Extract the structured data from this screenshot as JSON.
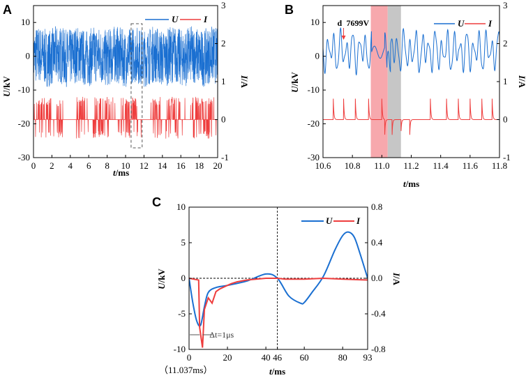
{
  "colors": {
    "u": "#1a6fd1",
    "i": "#ee3d3d",
    "shade_pink": "#f7a8ad",
    "shade_gray": "#c6c6c6",
    "axis": "#000000"
  },
  "chart_data": [
    {
      "panel": "A",
      "type": "line",
      "xlabel_var": "t",
      "xlabel_unit": "/ms",
      "ylabel_var": "U",
      "ylabel_unit": "/kV",
      "y2label_var": "I",
      "y2label_unit": "/A",
      "xlim": [
        0,
        20
      ],
      "ylim": [
        -30,
        15
      ],
      "y2lim": [
        -1,
        3
      ],
      "xticks": [
        "0",
        "2",
        "4",
        "6",
        "8",
        "10",
        "12",
        "14",
        "16",
        "18",
        "20"
      ],
      "yticks": [
        "-30",
        "-20",
        "-10",
        "0",
        "10"
      ],
      "y2ticks": [
        "-1",
        "0",
        "1",
        "2",
        "3"
      ],
      "legend": [
        "U",
        "I"
      ],
      "series": [
        {
          "name": "U",
          "axis": "left",
          "description": "dense oscillation between about -8 and 9 kV"
        },
        {
          "name": "I",
          "axis": "right",
          "description": "baseline 0 A with pulses up to about 0.6 A and down to about -0.5 A"
        }
      ],
      "annotations": [
        {
          "type": "dashed-box",
          "x_range": [
            10.6,
            11.8
          ]
        }
      ]
    },
    {
      "panel": "B",
      "type": "line",
      "xlabel_var": "t",
      "xlabel_unit": "/ms",
      "ylabel_var": "U",
      "ylabel_unit": "/kV",
      "y2label_var": "I",
      "y2label_unit": "/A",
      "xlim": [
        10.6,
        11.8
      ],
      "ylim": [
        -30,
        15
      ],
      "y2lim": [
        -1,
        3
      ],
      "xticks": [
        "10.6",
        "10.8",
        "11.0",
        "11.2",
        "11.4",
        "11.6",
        "11.8"
      ],
      "yticks": [
        "-30",
        "-20",
        "-10",
        "0",
        "10"
      ],
      "y2ticks": [
        "-1",
        "0",
        "1",
        "2",
        "3"
      ],
      "legend": [
        "U",
        "I"
      ],
      "annotation_label": "d",
      "annotation_value": "7699V",
      "annotation_x": 10.74,
      "shaded_regions": [
        {
          "from": 10.925,
          "to": 11.04,
          "color": "pink"
        },
        {
          "from": 11.04,
          "to": 11.13,
          "color": "gray"
        }
      ],
      "current_pulses_up": [
        10.67,
        10.74,
        10.82,
        10.91,
        11.0,
        11.33,
        11.44,
        11.52,
        11.6,
        11.68,
        11.75
      ],
      "current_pulses_down": [
        11.02,
        11.07,
        11.13,
        11.19
      ]
    },
    {
      "panel": "C",
      "type": "line",
      "xlabel_var": "t",
      "xlabel_unit": "/ms",
      "ylabel_var": "U",
      "ylabel_unit": "/kV",
      "y2label_var": "I",
      "y2label_unit": "/A",
      "xlim": [
        0,
        93
      ],
      "ylim": [
        -10,
        10
      ],
      "y2lim": [
        -0.8,
        0.8
      ],
      "xticks": [
        "0",
        "20",
        "40",
        "46",
        "60",
        "80",
        "93"
      ],
      "yticks": [
        "-10",
        "-5",
        "0",
        "5",
        "10"
      ],
      "y2ticks": [
        "-0.8",
        "-0.4",
        "0.0",
        "0.4",
        "0.8"
      ],
      "legend": [
        "U",
        "I"
      ],
      "reference_hline_y": 0,
      "reference_vline_x": 46,
      "xorigin_note": "（11.037ms）",
      "delta_label": "Δt=1μs",
      "series": [
        {
          "name": "U",
          "axis": "left",
          "x": [
            0,
            2,
            4,
            6,
            8,
            10,
            14,
            20,
            30,
            40,
            46,
            52,
            58,
            60,
            64,
            70,
            76,
            80,
            83,
            86,
            89,
            93
          ],
          "y": [
            0,
            -3.5,
            -6.0,
            -6.6,
            -4.0,
            -2.0,
            -1.3,
            -1.0,
            -0.4,
            0.6,
            0,
            -2.5,
            -3.5,
            -3.4,
            -2.0,
            0.3,
            4.0,
            6.0,
            6.5,
            5.8,
            3.5,
            0
          ]
        },
        {
          "name": "I",
          "axis": "right",
          "x": [
            0,
            5,
            5.5,
            7,
            8,
            10,
            12,
            14,
            16,
            18,
            20,
            22,
            25,
            30,
            40,
            46,
            50,
            60,
            70,
            80,
            93
          ],
          "y": [
            0,
            -0.02,
            -0.55,
            -0.78,
            -0.35,
            -0.22,
            -0.28,
            -0.15,
            -0.12,
            -0.1,
            -0.08,
            -0.06,
            -0.04,
            -0.02,
            0,
            0,
            -0.01,
            -0.01,
            0,
            -0.01,
            -0.02
          ]
        }
      ]
    }
  ]
}
